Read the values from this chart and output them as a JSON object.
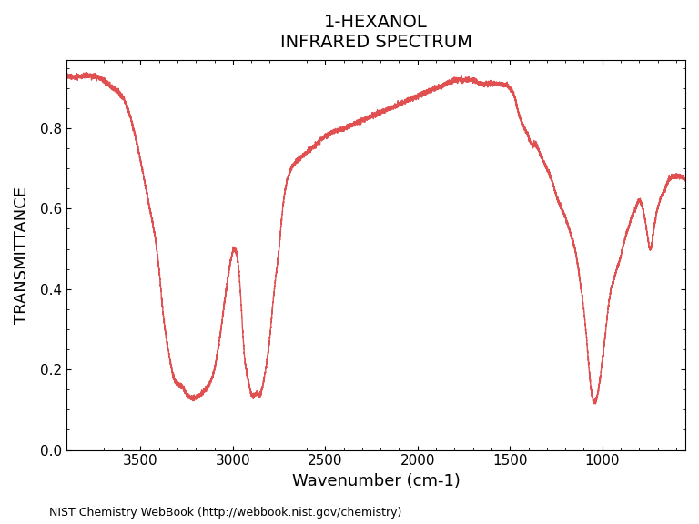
{
  "title_line1": "1-HEXANOL",
  "title_line2": "INFRARED SPECTRUM",
  "xlabel": "Wavenumber (cm-1)",
  "ylabel": "TRANSMITTANCE",
  "footnote": "NIST Chemistry WebBook (http://webbook.nist.gov/chemistry)",
  "line_color": "#e05050",
  "xlim": [
    3900,
    550
  ],
  "ylim": [
    0.0,
    0.97
  ],
  "yticks": [
    0.0,
    0.2,
    0.4,
    0.6,
    0.8
  ],
  "xticks": [
    3500,
    3000,
    2500,
    2000,
    1500,
    1000
  ],
  "background_color": "#ffffff",
  "title_fontsize": 14,
  "label_fontsize": 13
}
